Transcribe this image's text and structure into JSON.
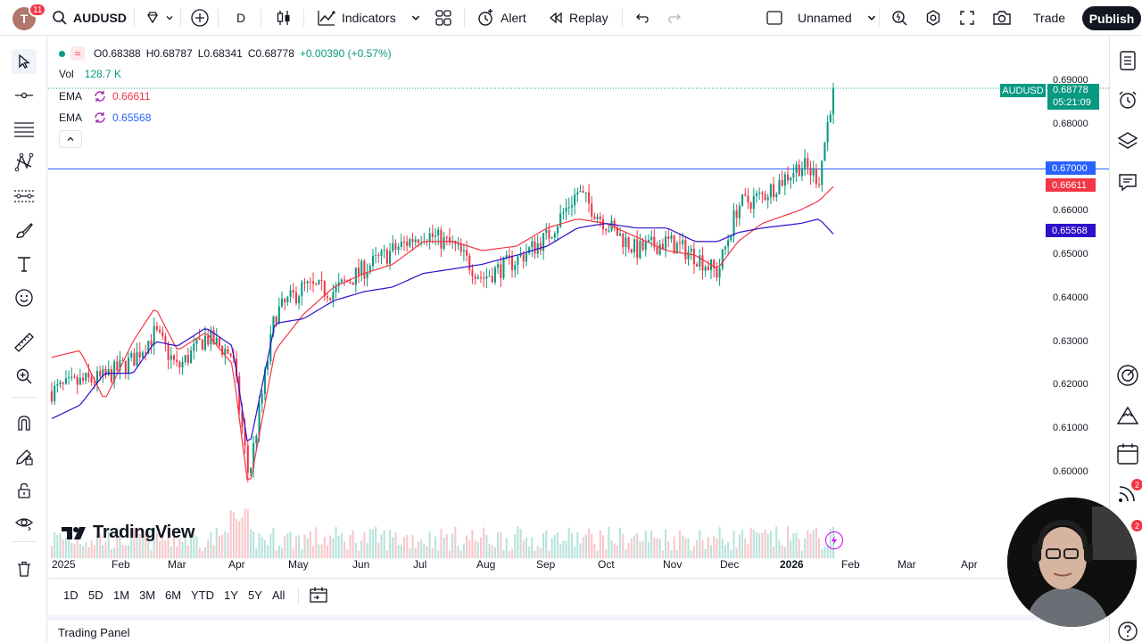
{
  "topbar": {
    "avatar_letter": "T",
    "notifications": "11",
    "symbol": "AUDUSD",
    "interval": "D",
    "indicators_label": "Indicators",
    "alert_label": "Alert",
    "replay_label": "Replay",
    "layout_name": "Unnamed",
    "trade_label": "Trade",
    "publish_label": "Publish"
  },
  "legend": {
    "open": "O0.68388",
    "high": "H0.68787",
    "low": "L0.68341",
    "close": "C0.68778",
    "change": "+0.00390 (+0.57%)",
    "vol_label": "Vol",
    "vol_value": "128.7 K",
    "ema1_label": "EMA",
    "ema1_value": "0.66611",
    "ema2_label": "EMA",
    "ema2_value": "0.65568"
  },
  "price_scale": {
    "ticks": [
      "0.69000",
      "0.68000",
      "0.66000",
      "0.65000",
      "0.64000",
      "0.63000",
      "0.62000",
      "0.61000",
      "0.60000"
    ],
    "symbol_tag": "AUDUSD",
    "last_price": "0.68778",
    "countdown": "05:21:09",
    "line_price": "0.67000",
    "ema1_price": "0.66611",
    "ema2_price": "0.65568"
  },
  "time_scale": [
    "2025",
    "Feb",
    "Mar",
    "Apr",
    "May",
    "Jun",
    "Jul",
    "Aug",
    "Sep",
    "Oct",
    "Nov",
    "Dec",
    "2026",
    "Feb",
    "Mar",
    "Apr"
  ],
  "ranges": [
    "1D",
    "5D",
    "1M",
    "3M",
    "6M",
    "YTD",
    "1Y",
    "5Y",
    "All"
  ],
  "brand": "TradingView",
  "trading_panel": "Trading Panel",
  "right_badges": [
    "2",
    "2"
  ],
  "colors": {
    "up": "#089981",
    "down": "#f23645",
    "ema_fast": "#f23645",
    "ema_slow": "#2962ff",
    "hline": "#2962ff",
    "ema_slow_label": "#2e0fcc"
  },
  "chart_data": {
    "type": "candlestick",
    "symbol": "AUDUSD",
    "interval": "D",
    "ylim": [
      0.5935,
      0.6915
    ],
    "horizontal_line": 0.67,
    "last_close": 0.68778,
    "points": [
      [
        "2025-01-01",
        0.621,
        0.6285,
        0.615
      ],
      [
        "2025-01-15",
        0.623,
        0.63,
        0.618
      ],
      [
        "2025-01-27",
        0.624,
        0.619,
        0.625
      ],
      [
        "2025-02-10",
        0.628,
        0.632,
        0.625
      ],
      [
        "2025-02-21",
        0.634,
        0.6395,
        0.632
      ],
      [
        "2025-03-04",
        0.626,
        0.63,
        0.631
      ],
      [
        "2025-03-18",
        0.633,
        0.634,
        0.635
      ],
      [
        "2025-03-31",
        0.629,
        0.627,
        0.631
      ],
      [
        "2025-04-08",
        0.602,
        0.599,
        0.608
      ],
      [
        "2025-04-21",
        0.638,
        0.63,
        0.636
      ],
      [
        "2025-05-05",
        0.644,
        0.638,
        0.637
      ],
      [
        "2025-05-20",
        0.643,
        0.644,
        0.641
      ],
      [
        "2025-06-04",
        0.648,
        0.647,
        0.643
      ],
      [
        "2025-06-18",
        0.652,
        0.649,
        0.644
      ],
      [
        "2025-07-03",
        0.656,
        0.654,
        0.647
      ],
      [
        "2025-07-18",
        0.653,
        0.654,
        0.648
      ],
      [
        "2025-08-01",
        0.646,
        0.652,
        0.649
      ],
      [
        "2025-08-18",
        0.65,
        0.653,
        0.651
      ],
      [
        "2025-09-02",
        0.655,
        0.657,
        0.653
      ],
      [
        "2025-09-17",
        0.665,
        0.659,
        0.657
      ],
      [
        "2025-10-01",
        0.658,
        0.658,
        0.658
      ],
      [
        "2025-10-16",
        0.652,
        0.655,
        0.657
      ],
      [
        "2025-10-31",
        0.654,
        0.652,
        0.657
      ],
      [
        "2025-11-14",
        0.651,
        0.651,
        0.654
      ],
      [
        "2025-11-25",
        0.647,
        0.648,
        0.654
      ],
      [
        "2025-12-05",
        0.662,
        0.654,
        0.656
      ],
      [
        "2025-12-17",
        0.664,
        0.658,
        0.657
      ],
      [
        "2026-01-05",
        0.671,
        0.661,
        0.658
      ],
      [
        "2026-01-14",
        0.668,
        0.663,
        0.659
      ],
      [
        "2026-01-21",
        0.688,
        0.6661,
        0.6557
      ]
    ],
    "series": [
      {
        "name": "AUDUSD",
        "values": "close"
      },
      {
        "name": "EMA",
        "values": "fast ema, column 3"
      },
      {
        "name": "EMA",
        "values": "slow ema, column 4"
      }
    ]
  }
}
